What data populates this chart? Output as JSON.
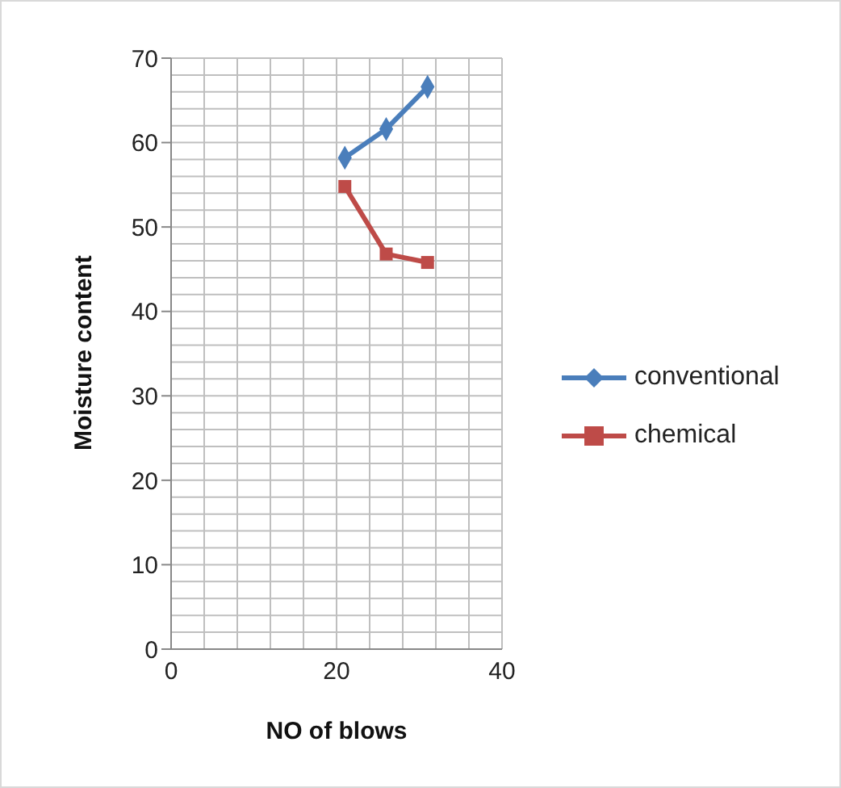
{
  "chart_data": {
    "type": "line",
    "xlabel": "NO of blows",
    "ylabel": "Moisture content",
    "xlim": [
      0,
      40
    ],
    "xticks": [
      0,
      20,
      40
    ],
    "ylim": [
      0,
      70
    ],
    "yticks": [
      0,
      10,
      20,
      30,
      40,
      50,
      60,
      70
    ],
    "grid": true,
    "legend": "right",
    "series": [
      {
        "name": "conventional",
        "color": "#4a7ebb",
        "marker": "diamond",
        "x": [
          21,
          26,
          31
        ],
        "values": [
          58.2,
          61.6,
          66.6
        ]
      },
      {
        "name": "chemical",
        "color": "#be4b48",
        "marker": "square",
        "x": [
          21,
          26,
          31
        ],
        "values": [
          54.8,
          46.8,
          45.8
        ]
      }
    ]
  }
}
